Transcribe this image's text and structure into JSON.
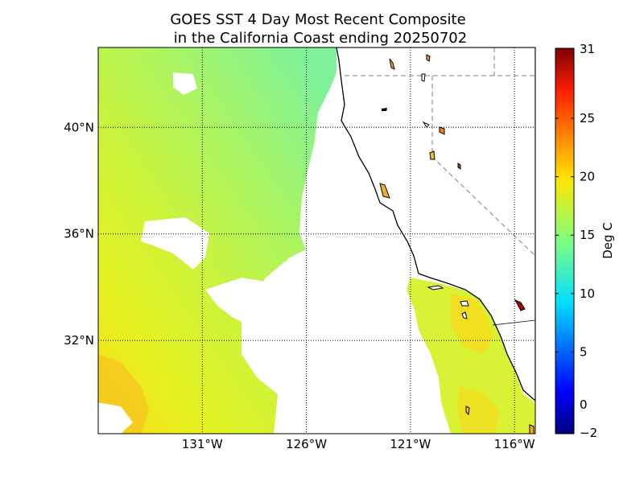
{
  "title": {
    "line1": "GOES SST 4 Day Most Recent Composite",
    "line2": "in the California Coast ending 20250702"
  },
  "map": {
    "lon_range": [
      -136,
      -115
    ],
    "lat_range": [
      28.5,
      43
    ],
    "lon_ticks": [
      {
        "value": -131,
        "label": "131°W"
      },
      {
        "value": -126,
        "label": "126°W"
      },
      {
        "value": -121,
        "label": "121°W"
      },
      {
        "value": -116,
        "label": "116°W"
      }
    ],
    "lat_ticks": [
      {
        "value": 40,
        "label": "40°N"
      },
      {
        "value": 36,
        "label": "36°N"
      },
      {
        "value": 32,
        "label": "32°N"
      }
    ],
    "grid": "dotted",
    "colormap": "jet"
  },
  "colorbar": {
    "label": "Deg C",
    "range": [
      -2,
      31
    ],
    "ticks": [
      {
        "value": 31,
        "label": "31"
      },
      {
        "value": 25,
        "label": "25"
      },
      {
        "value": 20,
        "label": "20"
      },
      {
        "value": 15,
        "label": "15"
      },
      {
        "value": 10,
        "label": "10"
      },
      {
        "value": 5,
        "label": "5"
      },
      {
        "value": 0,
        "label": "0"
      },
      {
        "value": -2,
        "label": "−2"
      }
    ]
  },
  "colors": {
    "land": "#ffffff",
    "coast": "#000000",
    "grid": "#000000",
    "state_border": "#808080"
  }
}
